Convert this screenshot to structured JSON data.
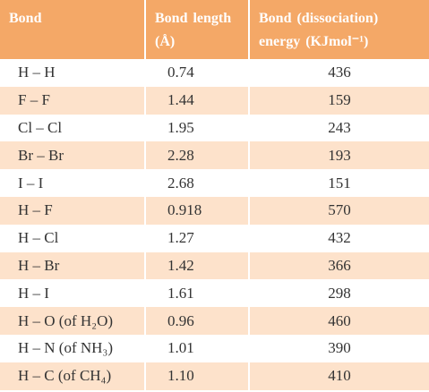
{
  "table": {
    "header": [
      "Bond",
      "Bond length (Å)",
      "Bond (dissociation) energy (KJmol⁻¹)"
    ],
    "rows": [
      [
        "H – H",
        "0.74",
        "436"
      ],
      [
        "F – F",
        "1.44",
        "159"
      ],
      [
        "Cl – Cl",
        "1.95",
        "243"
      ],
      [
        "Br – Br",
        "2.28",
        "193"
      ],
      [
        "I – I",
        "2.68",
        "151"
      ],
      [
        "H – F",
        "0.918",
        "570"
      ],
      [
        "H – Cl",
        "1.27",
        "432"
      ],
      [
        "H – Br",
        "1.42",
        "366"
      ],
      [
        "H – I",
        "1.61",
        "298"
      ],
      [
        "H – O (of H₂O)",
        "0.96",
        "460"
      ],
      [
        "H – N (of NH₃)",
        "1.01",
        "390"
      ],
      [
        "H – C (of CH₄)",
        "1.10",
        "410"
      ]
    ]
  }
}
